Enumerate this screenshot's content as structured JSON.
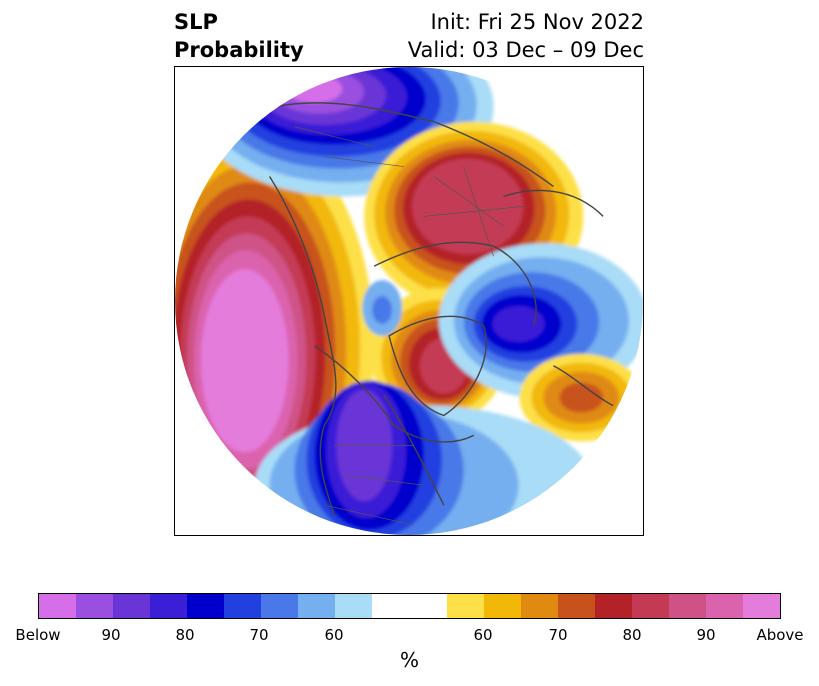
{
  "title": {
    "left_line1": "SLP",
    "left_line2": "Probability",
    "init": "Init: Fri 25 Nov 2022",
    "valid": "Valid: 03 Dec – 09 Dec"
  },
  "map": {
    "projection": "north-polar stereographic",
    "field": "sea level pressure tercile probability"
  },
  "colorbar": {
    "below_colors": [
      "#d56ee8",
      "#9a4fe0",
      "#6a35d6",
      "#3a1fd6",
      "#0000cd",
      "#2240e0",
      "#4a78e8",
      "#74aff0",
      "#a9dcf7"
    ],
    "neutral_color": "#ffffff",
    "above_colors": [
      "#fde047",
      "#f2b807",
      "#e08a12",
      "#c8521b",
      "#b32227",
      "#c43a55",
      "#cf5286",
      "#db62ad",
      "#e47cdc"
    ],
    "tick_labels": [
      "Below",
      "90",
      "80",
      "70",
      "60",
      "60",
      "70",
      "80",
      "90",
      "Above"
    ],
    "unit": "%"
  }
}
